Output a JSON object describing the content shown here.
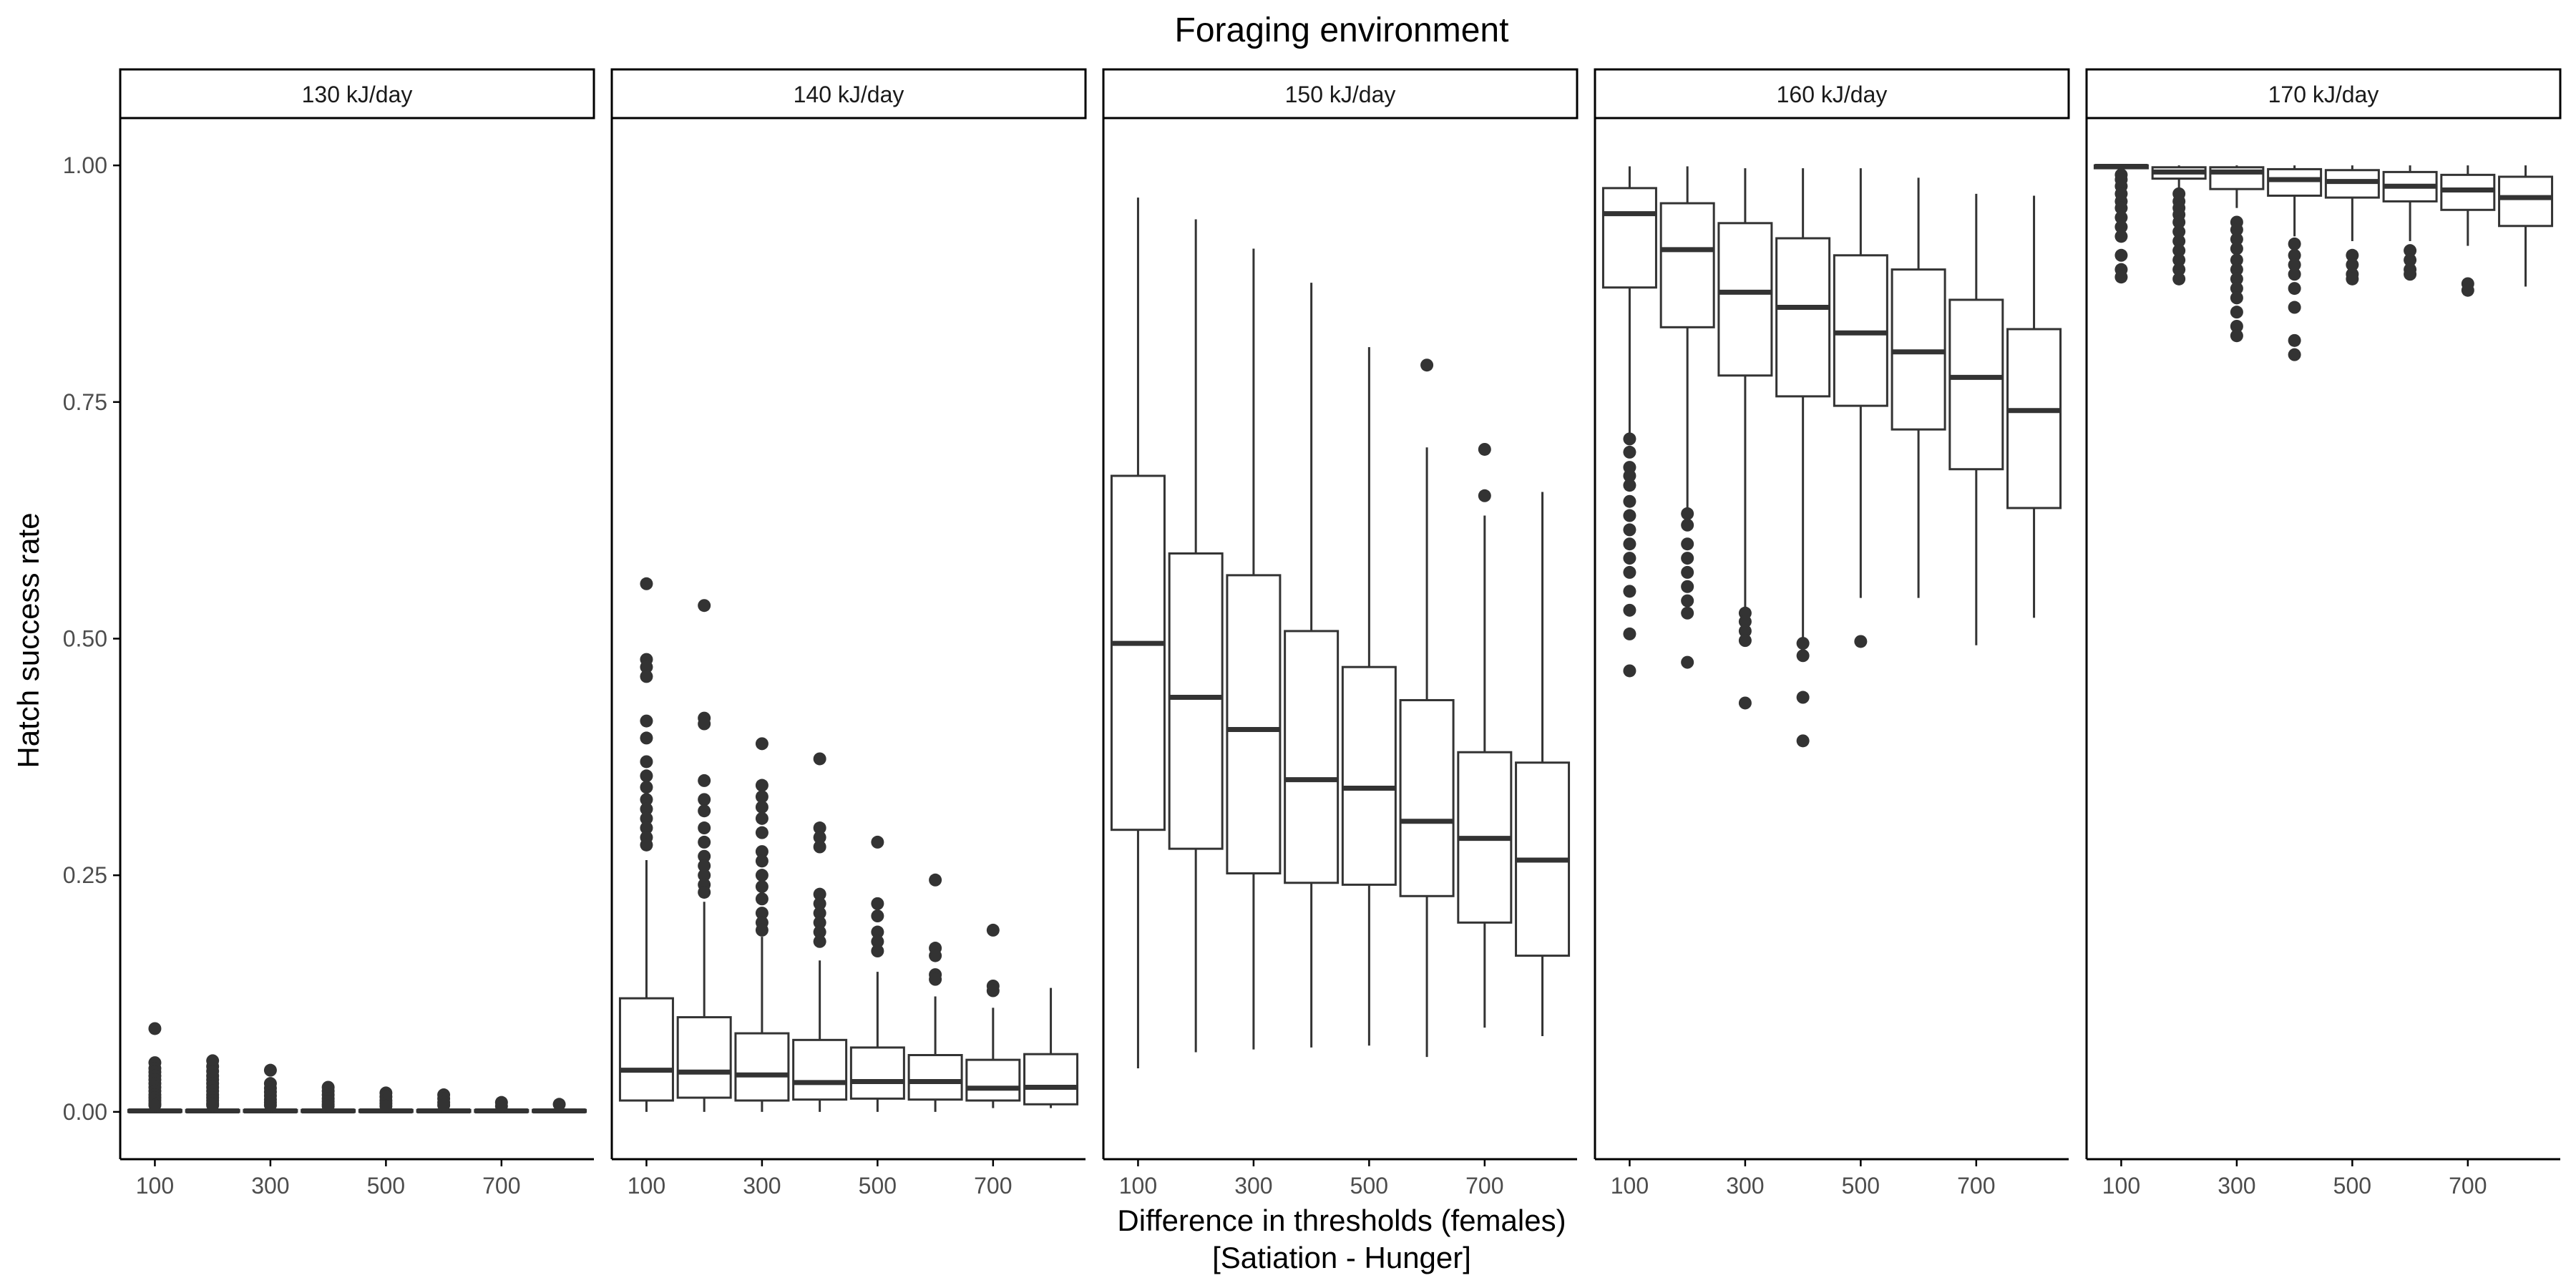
{
  "chart_data": {
    "type": "boxplot",
    "title": "Foraging environment",
    "xlabel_line1": "Difference in thresholds (females)",
    "xlabel_line2": "[Satiation - Hunger]",
    "ylabel": "Hatch success rate",
    "ylim": [
      -0.05,
      1.05
    ],
    "y_ticks": [
      0.0,
      0.25,
      0.5,
      0.75,
      1.0
    ],
    "y_tick_labels": [
      "0.00",
      "0.25",
      "0.50",
      "0.75",
      "1.00"
    ],
    "categories": [
      100,
      200,
      300,
      400,
      500,
      600,
      700,
      800
    ],
    "x_tick_values": [
      100,
      300,
      500,
      700
    ],
    "x_tick_labels": [
      "100",
      "300",
      "500",
      "700"
    ],
    "grid": false,
    "colors": {
      "box_stroke": "#333333",
      "axis": "#000000",
      "text": "#4d4d4d",
      "strip_fill": "#ffffff"
    },
    "facets": [
      {
        "label": "130 kJ/day",
        "boxes": [
          {
            "x": 100,
            "lw": 0,
            "q1": 0,
            "med": 0.001,
            "q3": 0.002,
            "uw": 0.004,
            "out": [
              0.088,
              0.052,
              0.046,
              0.042,
              0.038,
              0.034,
              0.03,
              0.026,
              0.022,
              0.018,
              0.015,
              0.012,
              0.009,
              0.007
            ]
          },
          {
            "x": 200,
            "lw": 0,
            "q1": 0,
            "med": 0.001,
            "q3": 0.002,
            "uw": 0.004,
            "out": [
              0.054,
              0.048,
              0.043,
              0.038,
              0.034,
              0.03,
              0.026,
              0.022,
              0.018,
              0.015,
              0.012,
              0.009,
              0.007
            ]
          },
          {
            "x": 300,
            "lw": 0,
            "q1": 0,
            "med": 0.001,
            "q3": 0.002,
            "uw": 0.004,
            "out": [
              0.044,
              0.03,
              0.025,
              0.021,
              0.017,
              0.013,
              0.01,
              0.007
            ]
          },
          {
            "x": 400,
            "lw": 0,
            "q1": 0,
            "med": 0.001,
            "q3": 0.002,
            "uw": 0.004,
            "out": [
              0.026,
              0.022,
              0.018,
              0.014,
              0.011,
              0.008,
              0.006
            ]
          },
          {
            "x": 500,
            "lw": 0,
            "q1": 0,
            "med": 0.001,
            "q3": 0.002,
            "uw": 0.004,
            "out": [
              0.02,
              0.016,
              0.012,
              0.009,
              0.006
            ]
          },
          {
            "x": 600,
            "lw": 0,
            "q1": 0,
            "med": 0.001,
            "q3": 0.002,
            "uw": 0.004,
            "out": [
              0.018,
              0.014,
              0.01,
              0.007
            ]
          },
          {
            "x": 700,
            "lw": 0,
            "q1": 0,
            "med": 0.001,
            "q3": 0.002,
            "uw": 0.003,
            "out": [
              0.01,
              0.006
            ]
          },
          {
            "x": 800,
            "lw": 0,
            "q1": 0,
            "med": 0.001,
            "q3": 0.002,
            "uw": 0.003,
            "out": [
              0.008
            ]
          }
        ]
      },
      {
        "label": "140 kJ/day",
        "boxes": [
          {
            "x": 100,
            "lw": 0,
            "q1": 0.012,
            "med": 0.044,
            "q3": 0.12,
            "uw": 0.266,
            "out": [
              0.558,
              0.478,
              0.47,
              0.46,
              0.413,
              0.395,
              0.37,
              0.355,
              0.343,
              0.33,
              0.32,
              0.31,
              0.3,
              0.29,
              0.282
            ]
          },
          {
            "x": 200,
            "lw": 0,
            "q1": 0.015,
            "med": 0.042,
            "q3": 0.1,
            "uw": 0.222,
            "out": [
              0.535,
              0.416,
              0.41,
              0.35,
              0.33,
              0.318,
              0.3,
              0.285,
              0.27,
              0.26,
              0.25,
              0.24,
              0.232
            ]
          },
          {
            "x": 300,
            "lw": 0,
            "q1": 0.012,
            "med": 0.039,
            "q3": 0.083,
            "uw": 0.185,
            "out": [
              0.389,
              0.345,
              0.333,
              0.322,
              0.31,
              0.295,
              0.275,
              0.265,
              0.25,
              0.238,
              0.225,
              0.21,
              0.2,
              0.192
            ]
          },
          {
            "x": 400,
            "lw": 0,
            "q1": 0.013,
            "med": 0.031,
            "q3": 0.076,
            "uw": 0.16,
            "out": [
              0.373,
              0.3,
              0.29,
              0.28,
              0.23,
              0.22,
              0.21,
              0.2,
              0.19,
              0.18
            ]
          },
          {
            "x": 500,
            "lw": 0,
            "q1": 0.014,
            "med": 0.032,
            "q3": 0.068,
            "uw": 0.148,
            "out": [
              0.285,
              0.22,
              0.207,
              0.19,
              0.18,
              0.17
            ]
          },
          {
            "x": 600,
            "lw": 0,
            "q1": 0.013,
            "med": 0.032,
            "q3": 0.06,
            "uw": 0.122,
            "out": [
              0.245,
              0.173,
              0.165,
              0.145,
              0.14
            ]
          },
          {
            "x": 700,
            "lw": 0.004,
            "q1": 0.012,
            "med": 0.025,
            "q3": 0.055,
            "uw": 0.11,
            "out": [
              0.192,
              0.133,
              0.128
            ]
          },
          {
            "x": 800,
            "lw": 0.004,
            "q1": 0.008,
            "med": 0.026,
            "q3": 0.061,
            "uw": 0.131,
            "out": []
          }
        ]
      },
      {
        "label": "150 kJ/day",
        "boxes": [
          {
            "x": 100,
            "lw": 0.046,
            "q1": 0.298,
            "med": 0.495,
            "q3": 0.672,
            "uw": 0.966,
            "out": []
          },
          {
            "x": 200,
            "lw": 0.063,
            "q1": 0.278,
            "med": 0.438,
            "q3": 0.59,
            "uw": 0.943,
            "out": []
          },
          {
            "x": 300,
            "lw": 0.066,
            "q1": 0.252,
            "med": 0.404,
            "q3": 0.567,
            "uw": 0.912,
            "out": []
          },
          {
            "x": 400,
            "lw": 0.068,
            "q1": 0.242,
            "med": 0.351,
            "q3": 0.508,
            "uw": 0.876,
            "out": []
          },
          {
            "x": 500,
            "lw": 0.07,
            "q1": 0.24,
            "med": 0.342,
            "q3": 0.47,
            "uw": 0.808,
            "out": []
          },
          {
            "x": 600,
            "lw": 0.058,
            "q1": 0.228,
            "med": 0.307,
            "q3": 0.435,
            "uw": 0.702,
            "out": [
              0.789
            ]
          },
          {
            "x": 700,
            "lw": 0.089,
            "q1": 0.2,
            "med": 0.289,
            "q3": 0.38,
            "uw": 0.63,
            "out": [
              0.7,
              0.651
            ]
          },
          {
            "x": 800,
            "lw": 0.08,
            "q1": 0.165,
            "med": 0.266,
            "q3": 0.369,
            "uw": 0.655,
            "out": []
          }
        ]
      },
      {
        "label": "160 kJ/day",
        "boxes": [
          {
            "x": 100,
            "lw": 0.71,
            "q1": 0.871,
            "med": 0.949,
            "q3": 0.976,
            "uw": 0.999,
            "out": [
              0.711,
              0.697,
              0.681,
              0.672,
              0.662,
              0.645,
              0.63,
              0.615,
              0.6,
              0.585,
              0.57,
              0.55,
              0.53,
              0.505,
              0.466
            ]
          },
          {
            "x": 200,
            "lw": 0.635,
            "q1": 0.829,
            "med": 0.911,
            "q3": 0.96,
            "uw": 0.999,
            "out": [
              0.632,
              0.62,
              0.6,
              0.585,
              0.57,
              0.555,
              0.54,
              0.527,
              0.475
            ]
          },
          {
            "x": 300,
            "lw": 0.532,
            "q1": 0.778,
            "med": 0.866,
            "q3": 0.939,
            "uw": 0.997,
            "out": [
              0.527,
              0.518,
              0.508,
              0.498,
              0.432
            ]
          },
          {
            "x": 400,
            "lw": 0.5,
            "q1": 0.756,
            "med": 0.85,
            "q3": 0.923,
            "uw": 0.997,
            "out": [
              0.495,
              0.482,
              0.438,
              0.392
            ]
          },
          {
            "x": 500,
            "lw": 0.543,
            "q1": 0.746,
            "med": 0.823,
            "q3": 0.905,
            "uw": 0.997,
            "out": [
              0.497
            ]
          },
          {
            "x": 600,
            "lw": 0.543,
            "q1": 0.721,
            "med": 0.803,
            "q3": 0.89,
            "uw": 0.987,
            "out": []
          },
          {
            "x": 700,
            "lw": 0.493,
            "q1": 0.679,
            "med": 0.776,
            "q3": 0.858,
            "uw": 0.97,
            "out": []
          },
          {
            "x": 800,
            "lw": 0.522,
            "q1": 0.638,
            "med": 0.741,
            "q3": 0.827,
            "uw": 0.968,
            "out": []
          }
        ]
      },
      {
        "label": "170 kJ/day",
        "boxes": [
          {
            "x": 100,
            "lw": 0.994,
            "q1": 0.997,
            "med": 0.999,
            "q3": 1.0,
            "uw": 1.0,
            "out": [
              0.99,
              0.985,
              0.978,
              0.97,
              0.962,
              0.955,
              0.945,
              0.935,
              0.925,
              0.905,
              0.89,
              0.882
            ]
          },
          {
            "x": 200,
            "lw": 0.975,
            "q1": 0.986,
            "med": 0.993,
            "q3": 0.998,
            "uw": 1.0,
            "out": [
              0.97,
              0.962,
              0.955,
              0.948,
              0.94,
              0.93,
              0.92,
              0.91,
              0.9,
              0.89,
              0.88
            ]
          },
          {
            "x": 300,
            "lw": 0.955,
            "q1": 0.975,
            "med": 0.993,
            "q3": 0.998,
            "uw": 1.0,
            "out": [
              0.94,
              0.932,
              0.922,
              0.912,
              0.9,
              0.89,
              0.88,
              0.87,
              0.86,
              0.845,
              0.83,
              0.82
            ]
          },
          {
            "x": 400,
            "lw": 0.925,
            "q1": 0.968,
            "med": 0.985,
            "q3": 0.996,
            "uw": 1.0,
            "out": [
              0.917,
              0.905,
              0.895,
              0.885,
              0.87,
              0.85,
              0.815,
              0.8
            ]
          },
          {
            "x": 500,
            "lw": 0.92,
            "q1": 0.966,
            "med": 0.983,
            "q3": 0.995,
            "uw": 1.0,
            "out": [
              0.905,
              0.895,
              0.885,
              0.88
            ]
          },
          {
            "x": 600,
            "lw": 0.92,
            "q1": 0.962,
            "med": 0.978,
            "q3": 0.993,
            "uw": 1.0,
            "out": [
              0.91,
              0.9,
              0.89,
              0.885
            ]
          },
          {
            "x": 700,
            "lw": 0.915,
            "q1": 0.953,
            "med": 0.974,
            "q3": 0.99,
            "uw": 1.0,
            "out": [
              0.875,
              0.868
            ]
          },
          {
            "x": 800,
            "lw": 0.872,
            "q1": 0.936,
            "med": 0.966,
            "q3": 0.988,
            "uw": 1.0,
            "out": []
          }
        ]
      }
    ]
  }
}
